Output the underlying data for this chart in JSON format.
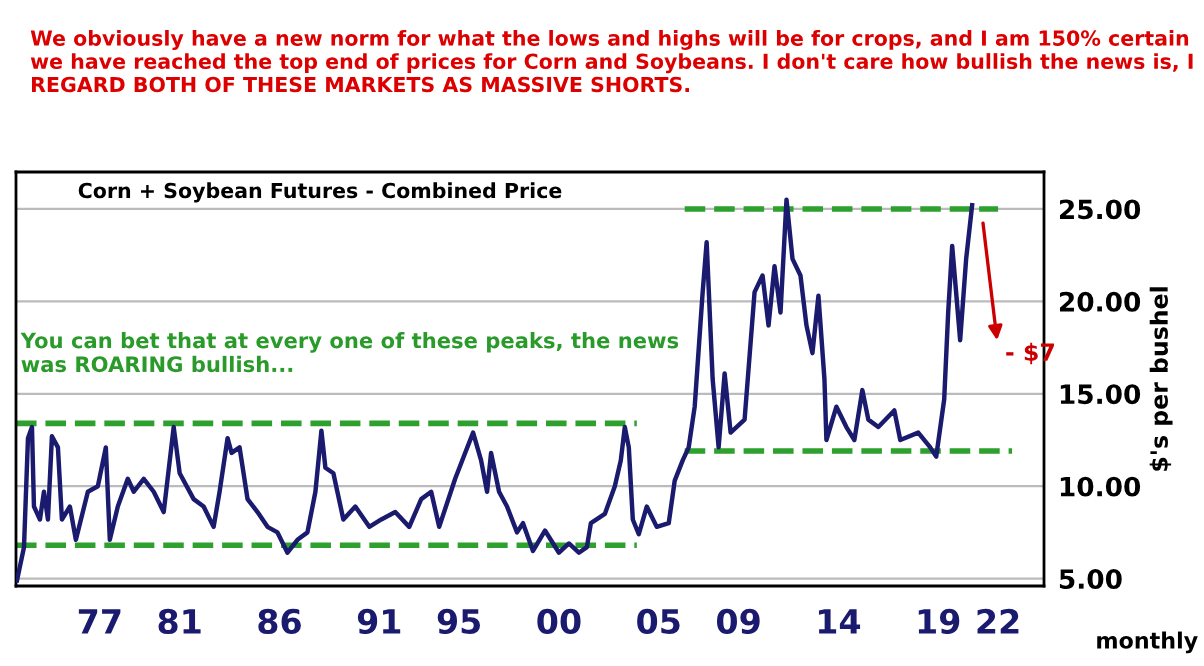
{
  "chart_data": {
    "type": "line",
    "title": "We obviously have a new norm for what the lows and highs will be for crops, and I am 150% certain we have reached the top end of prices for Corn and Soybeans. I don't care how bullish the news is, I REGARD BOTH OF THESE MARKETS AS MASSIVE SHORTS.",
    "subtitle": "Corn + Soybean Futures - Combined Price",
    "xlabel": "monthly",
    "ylabel": "$'s per bushel",
    "xlim": [
      1972.8,
      2024.3
    ],
    "ylim": [
      4.6,
      27.0
    ],
    "xticks": [
      {
        "value": 1977,
        "label": "77"
      },
      {
        "value": 1981,
        "label": "81"
      },
      {
        "value": 1986,
        "label": "86"
      },
      {
        "value": 1991,
        "label": "91"
      },
      {
        "value": 1995,
        "label": "95"
      },
      {
        "value": 2000,
        "label": "00"
      },
      {
        "value": 2005,
        "label": "05"
      },
      {
        "value": 2009,
        "label": "09"
      },
      {
        "value": 2014,
        "label": "14"
      },
      {
        "value": 2019,
        "label": "19"
      },
      {
        "value": 2022,
        "label": "22"
      }
    ],
    "yticks": [
      {
        "value": 5,
        "label": "5.00"
      },
      {
        "value": 10,
        "label": "10.00"
      },
      {
        "value": 15,
        "label": "15.00"
      },
      {
        "value": 20,
        "label": "20.00"
      },
      {
        "value": 25,
        "label": "25.00"
      }
    ],
    "grid": "y",
    "legend": false,
    "line_style": "solid",
    "marker": "none",
    "series": [
      {
        "color": "#1a1a6e",
        "x": [
          1972.85,
          1973.2,
          1973.4,
          1973.6,
          1973.7,
          1974.0,
          1974.2,
          1974.4,
          1974.6,
          1974.9,
          1975.1,
          1975.5,
          1975.8,
          1976.4,
          1976.9,
          1977.3,
          1977.5,
          1977.9,
          1978.4,
          1978.7,
          1979.2,
          1979.7,
          1980.2,
          1980.7,
          1981.0,
          1981.7,
          1982.2,
          1982.7,
          1983.0,
          1983.4,
          1983.6,
          1984.0,
          1984.4,
          1984.9,
          1985.4,
          1985.9,
          1986.4,
          1986.9,
          1987.4,
          1987.8,
          1988.1,
          1988.3,
          1988.7,
          1989.2,
          1989.8,
          1990.5,
          1991.1,
          1991.8,
          1992.5,
          1993.1,
          1993.6,
          1994.0,
          1994.8,
          1995.3,
          1995.7,
          1996.1,
          1996.4,
          1996.6,
          1997.0,
          1997.4,
          1997.9,
          1998.2,
          1998.7,
          1999.3,
          2000.0,
          2000.5,
          2001.0,
          2001.4,
          2001.6,
          2002.3,
          2002.8,
          2003.1,
          2003.3,
          2003.5,
          2003.7,
          2004.0,
          2004.4,
          2004.9,
          2005.5,
          2005.8,
          2006.2,
          2006.5,
          2006.8,
          2007.2,
          2007.4,
          2007.7,
          2008.0,
          2008.3,
          2008.6,
          2009.3,
          2009.8,
          2010.2,
          2010.5,
          2010.8,
          2011.1,
          2011.4,
          2011.7,
          2012.1,
          2012.4,
          2012.7,
          2013.0,
          2013.3,
          2013.4,
          2013.9,
          2014.4,
          2014.8,
          2015.2,
          2015.5,
          2016.0,
          2016.8,
          2017.1,
          2018.0,
          2018.6,
          2018.9,
          2019.3,
          2019.5,
          2019.7,
          2020.1,
          2020.4,
          2020.7
        ],
        "values": [
          4.9,
          6.7,
          12.6,
          13.2,
          8.9,
          8.2,
          9.7,
          8.2,
          12.7,
          12.1,
          8.2,
          8.9,
          7.1,
          9.7,
          10.0,
          12.1,
          7.1,
          8.9,
          10.4,
          9.7,
          10.4,
          9.7,
          8.6,
          13.2,
          10.7,
          9.3,
          8.9,
          7.8,
          9.7,
          12.6,
          11.8,
          12.1,
          9.3,
          8.6,
          7.8,
          7.5,
          6.4,
          7.1,
          7.5,
          9.7,
          13.0,
          11.0,
          10.7,
          8.2,
          8.9,
          7.8,
          8.2,
          8.6,
          7.8,
          9.3,
          9.7,
          7.8,
          10.4,
          11.8,
          12.9,
          11.4,
          9.7,
          11.8,
          9.7,
          8.9,
          7.5,
          8.0,
          6.5,
          7.6,
          6.4,
          6.9,
          6.4,
          6.7,
          8.0,
          8.5,
          10.0,
          11.4,
          13.2,
          12.1,
          8.2,
          7.4,
          8.9,
          7.8,
          8.0,
          10.3,
          11.4,
          12.1,
          14.3,
          20.5,
          23.2,
          15.8,
          12.1,
          16.1,
          12.9,
          13.6,
          20.5,
          21.4,
          18.7,
          21.9,
          19.4,
          25.5,
          22.3,
          21.4,
          18.7,
          17.2,
          20.3,
          15.8,
          12.5,
          14.3,
          13.2,
          12.5,
          15.2,
          13.6,
          13.2,
          14.1,
          12.5,
          12.9,
          12.1,
          11.6,
          14.7,
          19.4,
          23.0,
          17.9,
          22.3,
          25.2
        ]
      },
      {
        "type": "line",
        "line_style": "dashed",
        "color": "#2ea02e",
        "x": [
          1972.8,
          2003.9
        ],
        "values": [
          13.4,
          13.4
        ]
      },
      {
        "type": "line",
        "line_style": "dashed",
        "color": "#2ea02e",
        "x": [
          1972.8,
          2003.9
        ],
        "values": [
          6.8,
          6.8
        ]
      },
      {
        "type": "line",
        "line_style": "dashed",
        "color": "#2ea02e",
        "x": [
          2006.3,
          2022.0
        ],
        "values": [
          25.0,
          25.0
        ]
      },
      {
        "type": "line",
        "line_style": "dashed",
        "color": "#2ea02e",
        "x": [
          2006.3,
          2022.7
        ],
        "values": [
          11.9,
          11.9
        ]
      }
    ],
    "annotations": [
      "You can bet that at every one of these peaks, the news was ROARING bullish...",
      "- $7"
    ]
  }
}
